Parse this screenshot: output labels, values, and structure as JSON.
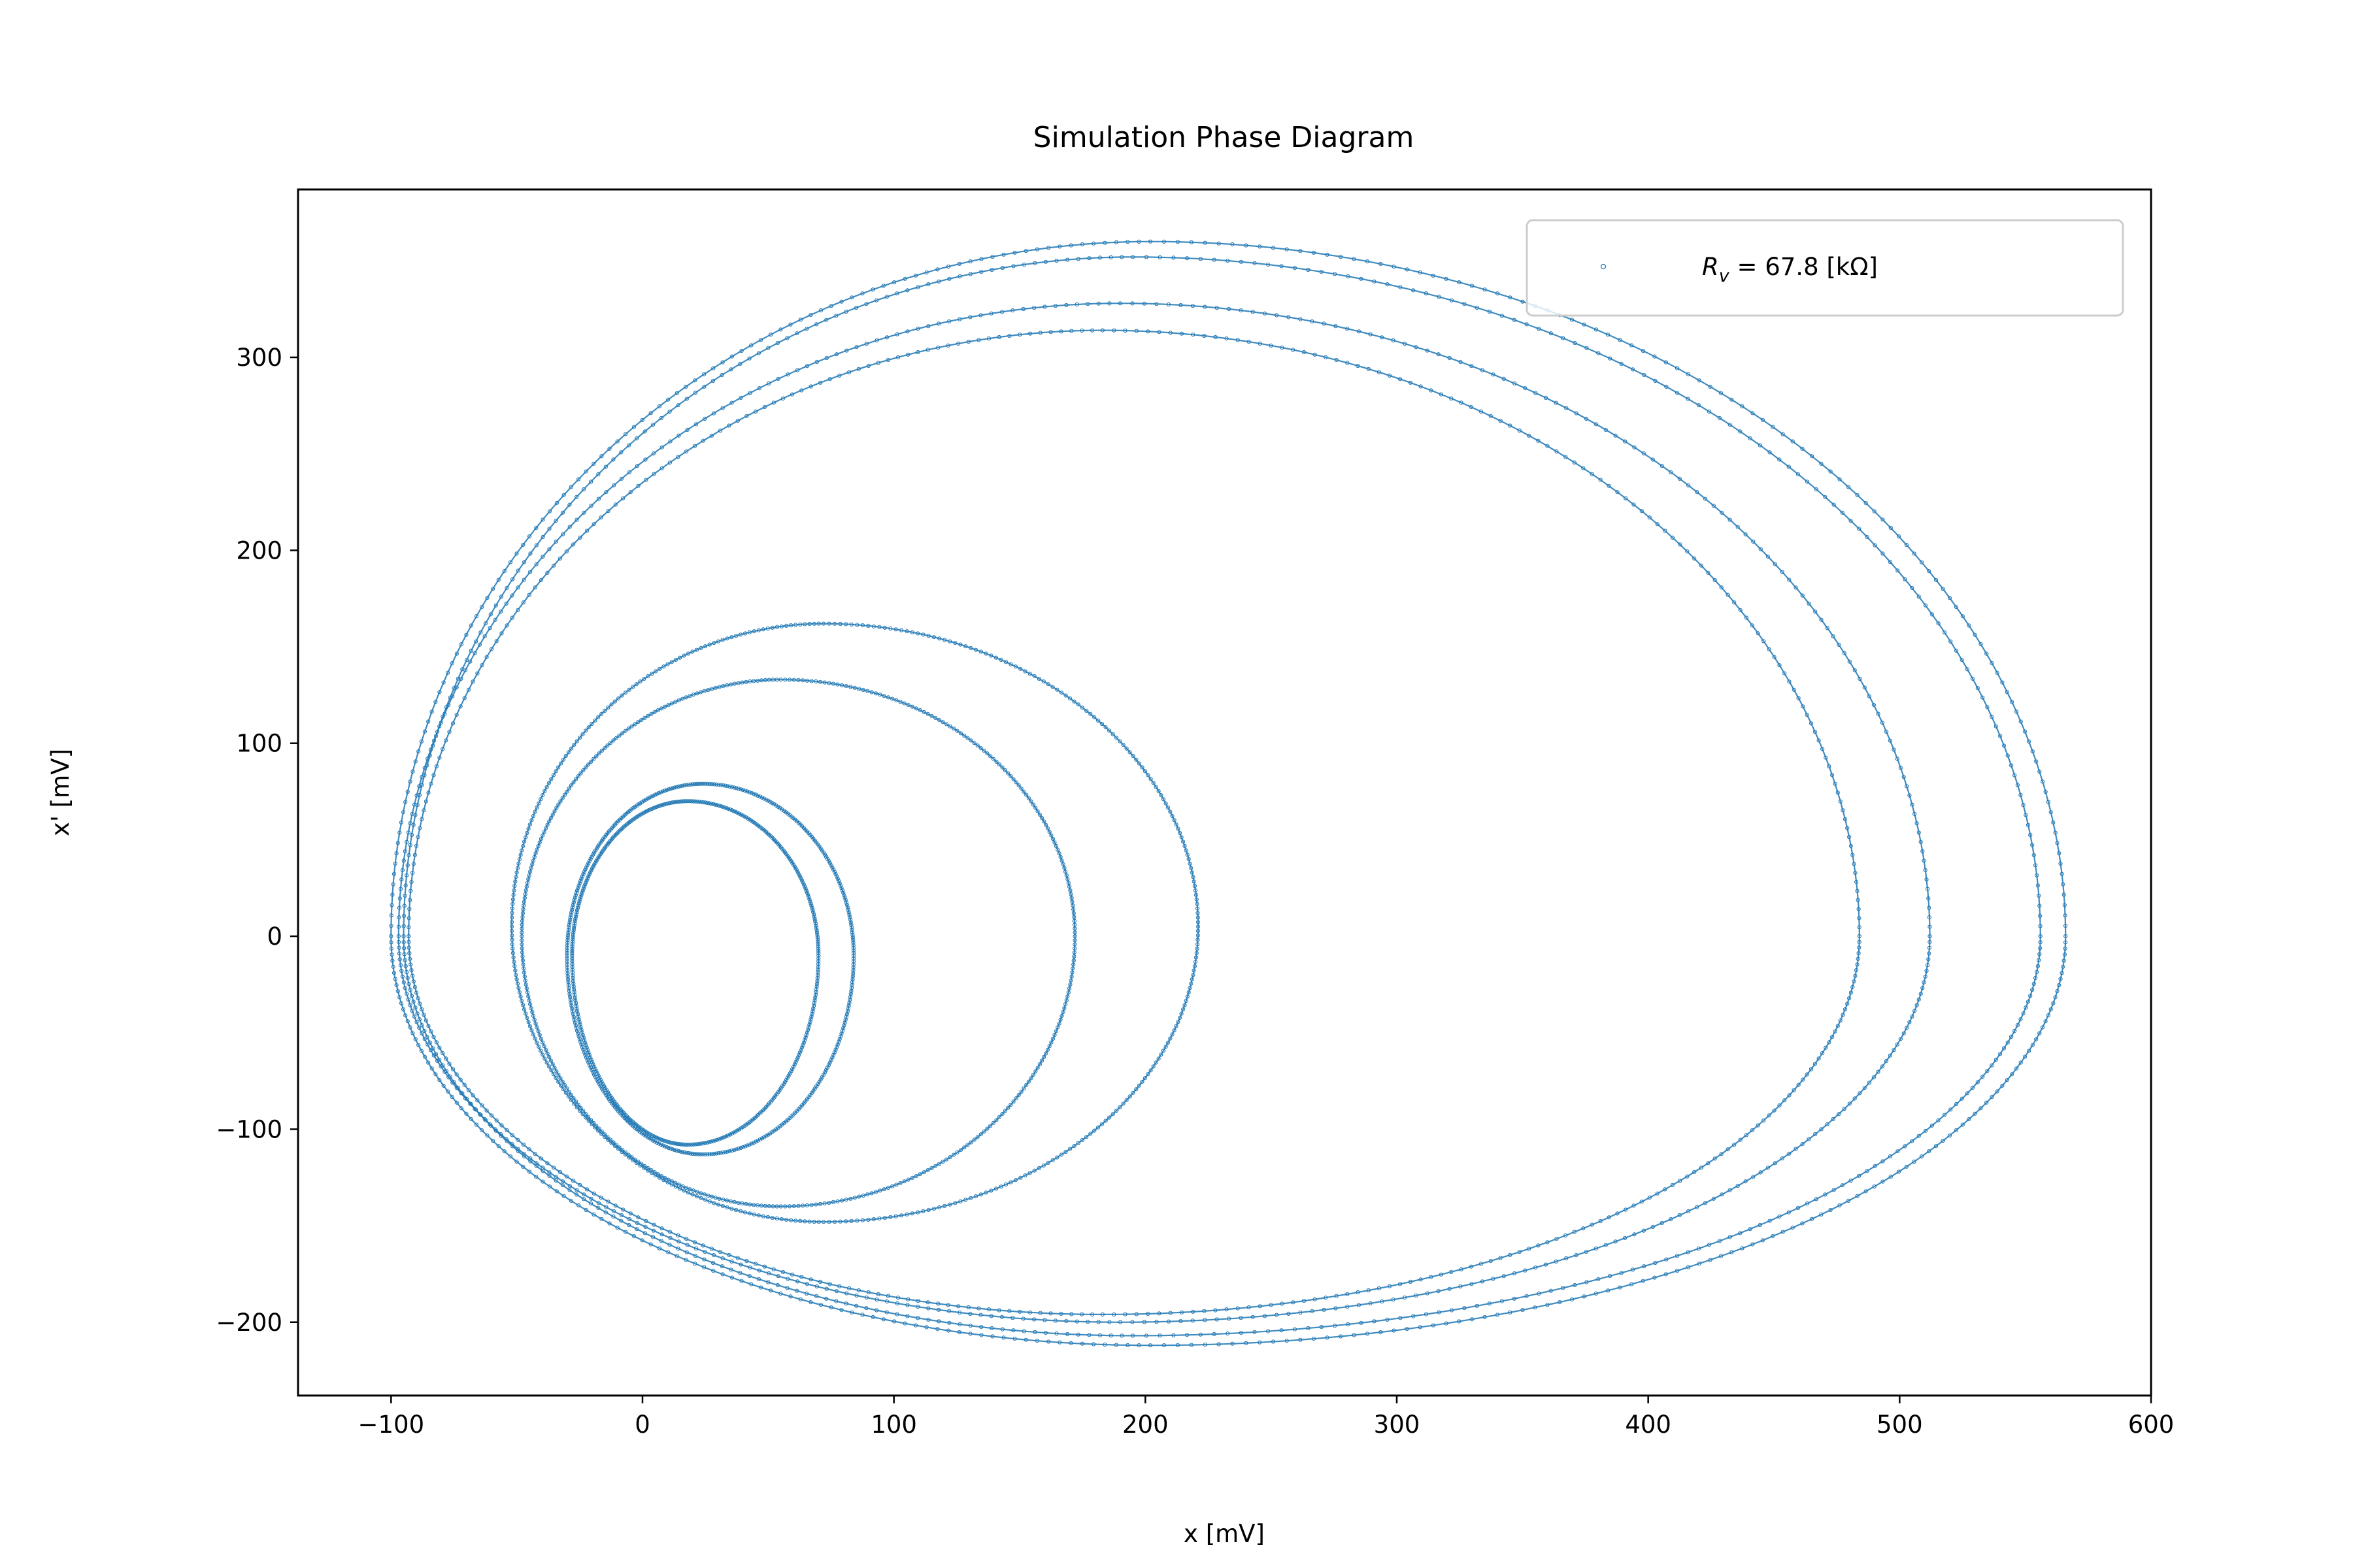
{
  "chart_data": {
    "type": "scatter",
    "title": "Simulation Phase Diagram",
    "xlabel": "x [mV]",
    "ylabel": "x' [mV]",
    "xlim": [
      -137,
      600
    ],
    "ylim": [
      -238,
      387
    ],
    "xticks": [
      -100,
      0,
      100,
      200,
      300,
      400,
      500,
      600
    ],
    "xtick_labels": [
      "−100",
      "0",
      "100",
      "200",
      "300",
      "400",
      "500",
      "600"
    ],
    "yticks": [
      -200,
      -100,
      0,
      100,
      200,
      300
    ],
    "ytick_labels": [
      "−200",
      "−100",
      "0",
      "100",
      "200",
      "300"
    ],
    "grid": false,
    "legend": {
      "placement": "top-right",
      "label_main": "R",
      "label_sub": "v",
      "label_rest": " = 67.8 [kΩ]"
    },
    "series": [
      {
        "color": "#1f77b4",
        "marker": "small hollow circle",
        "loops": [
          {
            "center_x": 24,
            "center_y": -10,
            "x_min": -30,
            "x_max": 84,
            "y_max": 79,
            "y_min": -113
          },
          {
            "center_x": 18,
            "center_y": -10,
            "x_min": -28,
            "x_max": 70,
            "y_max": 70,
            "y_min": -108
          },
          {
            "center_x": 72,
            "center_y": 5,
            "x_min": -52,
            "x_max": 221,
            "y_max": 162,
            "y_min": -148
          },
          {
            "center_x": 55,
            "center_y": 0,
            "x_min": -48,
            "x_max": 172,
            "y_max": 133,
            "y_min": -140
          },
          {
            "center_x": 202,
            "center_y": 0,
            "x_min": -100,
            "x_max": 566,
            "y_max": 360,
            "y_min": -212
          },
          {
            "center_x": 195,
            "center_y": 0,
            "x_min": -95,
            "x_max": 556,
            "y_max": 352,
            "y_min": -207
          },
          {
            "center_x": 190,
            "center_y": 0,
            "x_min": -97,
            "x_max": 512,
            "y_max": 328,
            "y_min": -200
          },
          {
            "center_x": 183,
            "center_y": 0,
            "x_min": -93,
            "x_max": 484,
            "y_max": 314,
            "y_min": -196
          }
        ]
      }
    ]
  }
}
